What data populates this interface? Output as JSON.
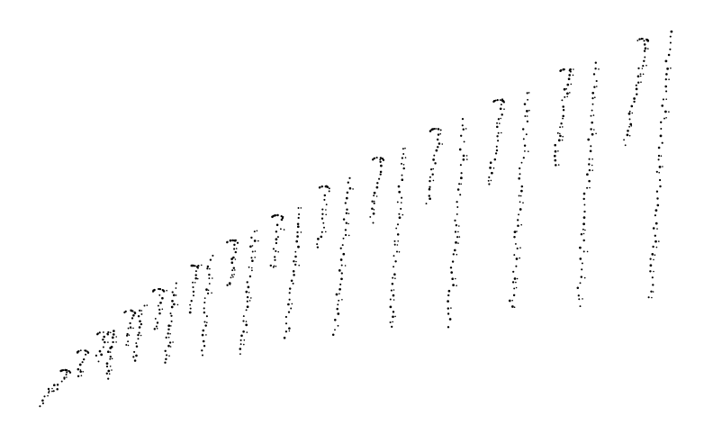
{
  "figure": {
    "background": "#ffffff",
    "point_color": "#000000"
  }
}
